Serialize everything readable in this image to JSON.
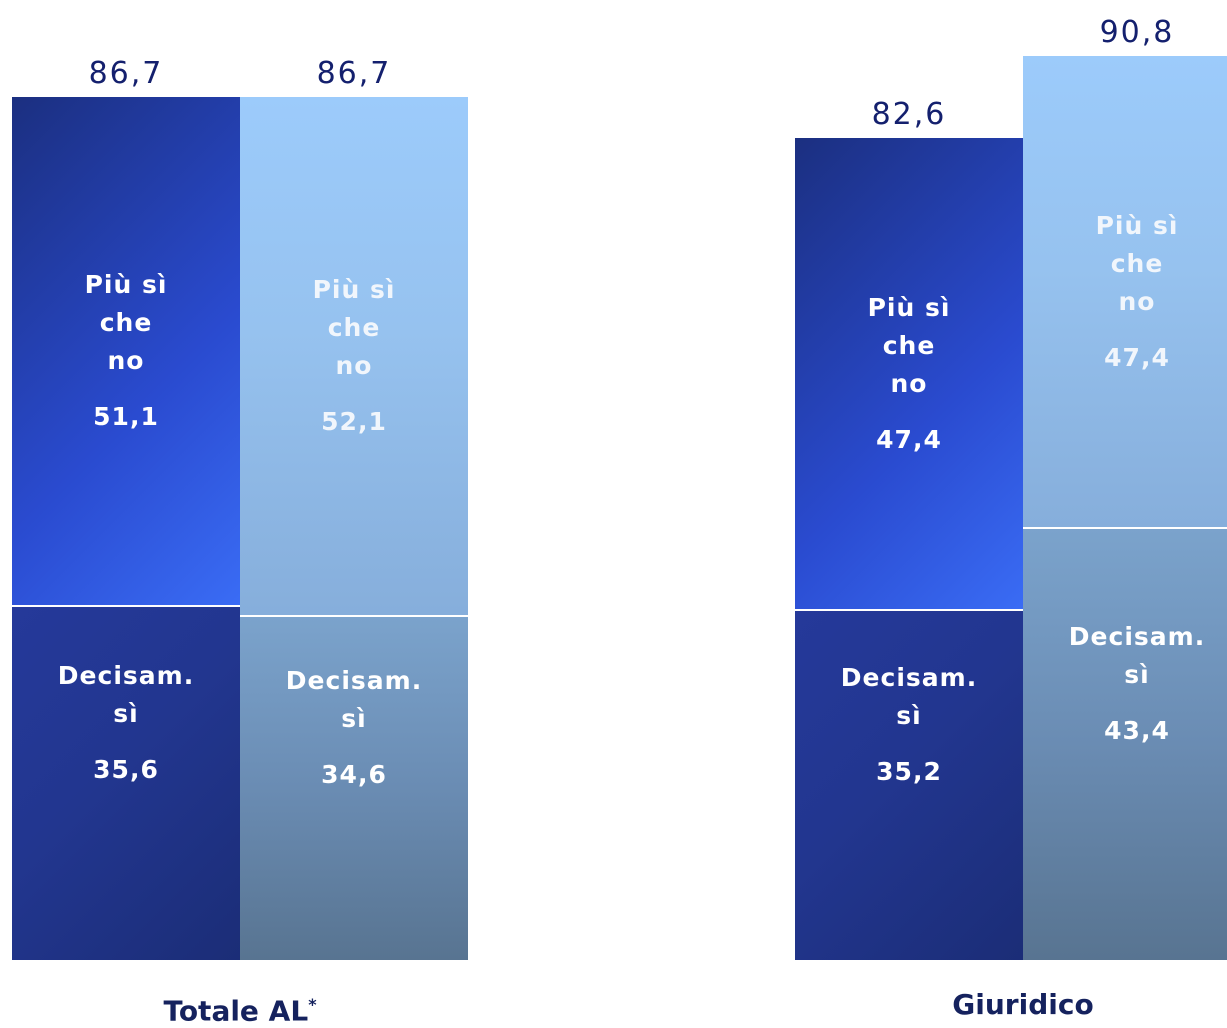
{
  "chart_data": {
    "type": "bar",
    "stacked": true,
    "groups": [
      {
        "category": "Totale AL",
        "category_note": "*",
        "bars": [
          {
            "total": "86,7",
            "total_value": 86.7,
            "shade": "dark",
            "segments": [
              {
                "label_lines": [
                  "Decisam.",
                  "sì"
                ],
                "value_label": "35,6",
                "value": 35.6
              },
              {
                "label_lines": [
                  "Più sì",
                  "che",
                  "no"
                ],
                "value_label": "51,1",
                "value": 51.1
              }
            ]
          },
          {
            "total": "86,7",
            "total_value": 86.7,
            "shade": "light",
            "segments": [
              {
                "label_lines": [
                  "Decisam.",
                  "sì"
                ],
                "value_label": "34,6",
                "value": 34.6
              },
              {
                "label_lines": [
                  "Più sì",
                  "che",
                  "no"
                ],
                "value_label": "52,1",
                "value": 52.1
              }
            ]
          }
        ]
      },
      {
        "category": "Giuridico",
        "category_note": "",
        "bars": [
          {
            "total": "82,6",
            "total_value": 82.6,
            "shade": "dark",
            "segments": [
              {
                "label_lines": [
                  "Decisam.",
                  "sì"
                ],
                "value_label": "35,2",
                "value": 35.2
              },
              {
                "label_lines": [
                  "Più sì",
                  "che",
                  "no"
                ],
                "value_label": "47,4",
                "value": 47.4
              }
            ]
          },
          {
            "total": "90,8",
            "total_value": 90.8,
            "shade": "light",
            "segments": [
              {
                "label_lines": [
                  "Decisam.",
                  "sì"
                ],
                "value_label": "43,4",
                "value": 43.4
              },
              {
                "label_lines": [
                  "Più sì",
                  "che",
                  "no"
                ],
                "value_label": "47,4",
                "value": 47.4
              }
            ]
          }
        ]
      }
    ],
    "ylim": [
      0,
      90.8
    ],
    "grid": false,
    "colors": {
      "dark": "#2a4bd0",
      "light": "#96c2ef",
      "total_text": "#14206e",
      "category_text": "#15225e"
    }
  }
}
